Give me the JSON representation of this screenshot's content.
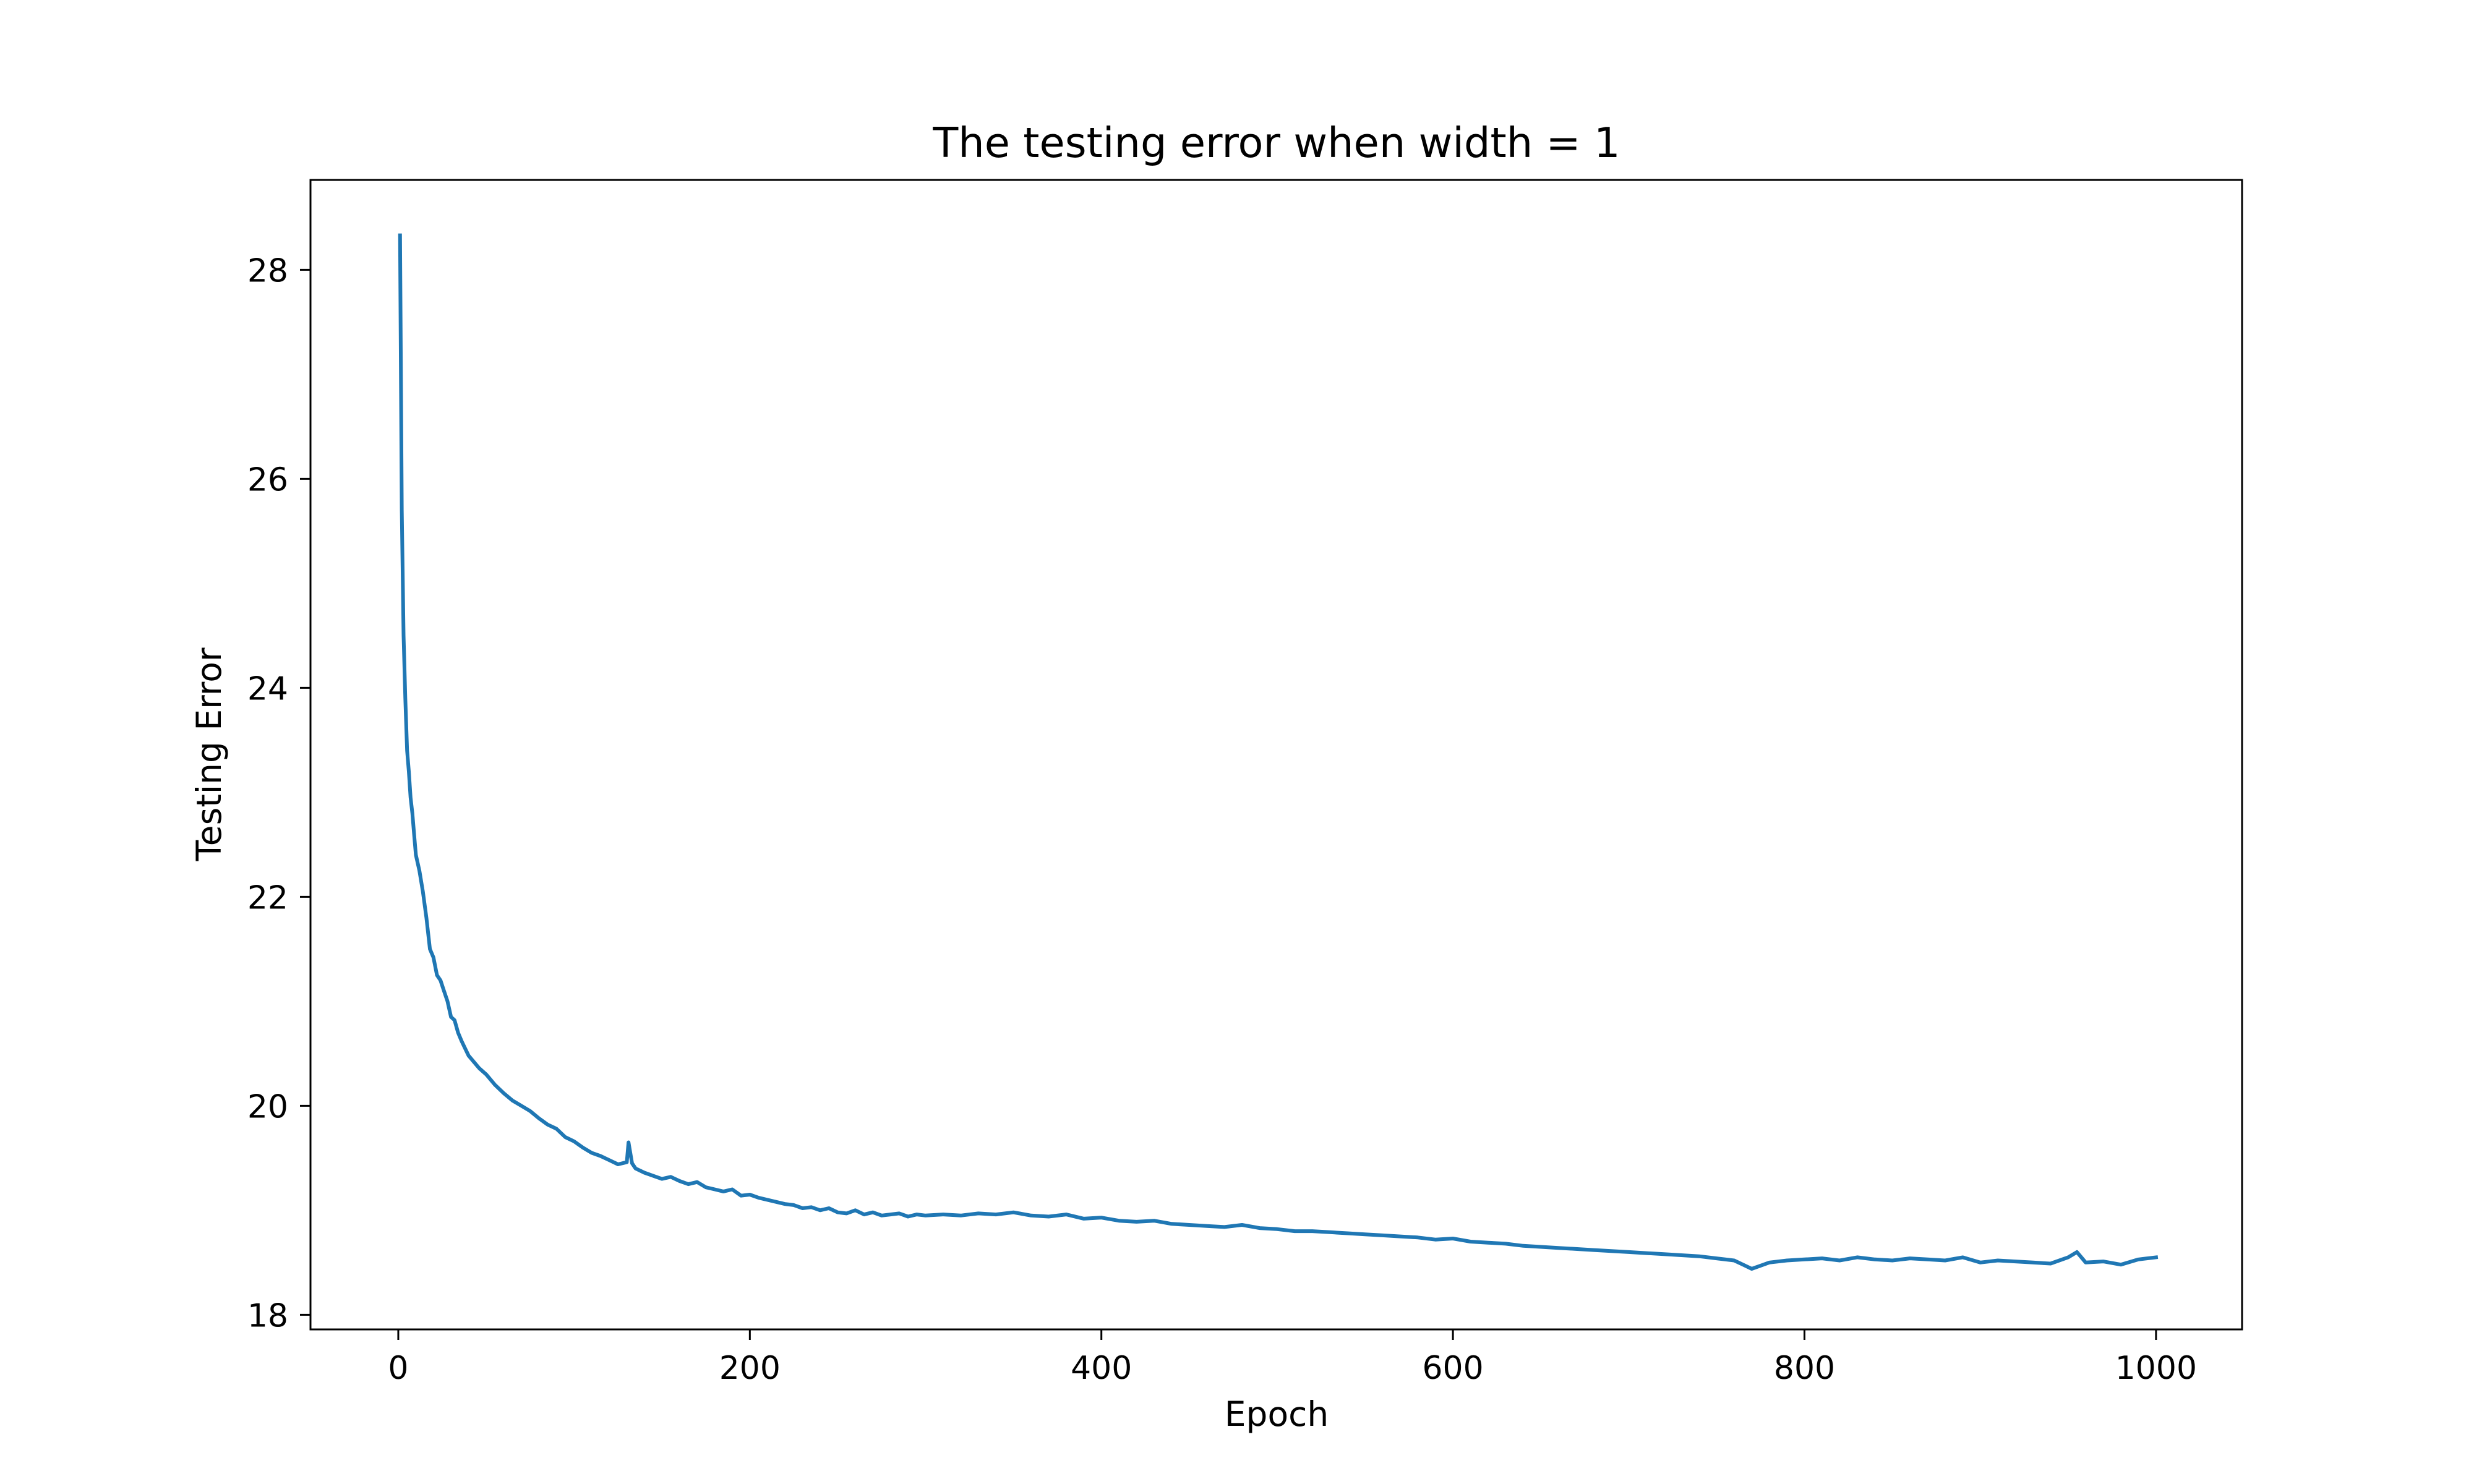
{
  "chart_data": {
    "type": "line",
    "title": "The testing error when width = 1",
    "xlabel": "Epoch",
    "ylabel": "Testing Error",
    "xlim": [
      -49.95,
      1048.95
    ],
    "ylim": [
      17.86,
      28.86
    ],
    "x_ticks": [
      0,
      200,
      400,
      600,
      800,
      1000
    ],
    "y_ticks": [
      18,
      20,
      22,
      24,
      26,
      28
    ],
    "x_tick_labels": [
      "0",
      "200",
      "400",
      "600",
      "800",
      "1000"
    ],
    "y_tick_labels": [
      "18",
      "20",
      "22",
      "24",
      "26",
      "28"
    ],
    "grid": false,
    "legend": "none",
    "series": [
      {
        "color": "#1f77b4",
        "x": [
          1,
          2,
          3,
          4,
          5,
          6,
          7,
          8,
          9,
          10,
          12,
          14,
          16,
          18,
          20,
          22,
          24,
          26,
          28,
          30,
          32,
          34,
          36,
          38,
          40,
          43,
          46,
          50,
          55,
          60,
          65,
          70,
          75,
          80,
          85,
          90,
          95,
          100,
          105,
          110,
          115,
          120,
          125,
          130,
          131,
          133,
          135,
          140,
          145,
          150,
          155,
          160,
          165,
          170,
          175,
          180,
          185,
          190,
          195,
          200,
          205,
          210,
          215,
          220,
          225,
          230,
          235,
          240,
          245,
          250,
          255,
          260,
          265,
          270,
          275,
          280,
          285,
          290,
          295,
          300,
          310,
          320,
          330,
          340,
          350,
          360,
          370,
          380,
          390,
          400,
          410,
          420,
          430,
          440,
          450,
          460,
          470,
          480,
          490,
          500,
          510,
          520,
          530,
          540,
          550,
          560,
          570,
          580,
          590,
          600,
          610,
          620,
          630,
          640,
          650,
          660,
          670,
          680,
          690,
          700,
          710,
          720,
          730,
          740,
          750,
          760,
          765,
          770,
          775,
          780,
          790,
          800,
          810,
          820,
          830,
          840,
          850,
          860,
          870,
          880,
          890,
          900,
          910,
          920,
          930,
          940,
          950,
          955,
          960,
          970,
          980,
          990,
          1000
        ],
        "values": [
          28.33,
          25.7,
          24.5,
          23.9,
          23.4,
          23.2,
          22.95,
          22.8,
          22.6,
          22.4,
          22.25,
          22.05,
          21.8,
          21.5,
          21.42,
          21.25,
          21.2,
          21.1,
          21.0,
          20.85,
          20.82,
          20.7,
          20.62,
          20.55,
          20.48,
          20.42,
          20.36,
          20.3,
          20.2,
          20.12,
          20.05,
          20.0,
          19.95,
          19.88,
          19.82,
          19.78,
          19.7,
          19.66,
          19.6,
          19.55,
          19.52,
          19.48,
          19.44,
          19.46,
          19.65,
          19.45,
          19.4,
          19.36,
          19.33,
          19.3,
          19.32,
          19.28,
          19.25,
          19.27,
          19.22,
          19.2,
          19.18,
          19.2,
          19.14,
          19.15,
          19.12,
          19.1,
          19.08,
          19.06,
          19.05,
          19.02,
          19.03,
          19.0,
          19.02,
          18.98,
          18.97,
          19.0,
          18.96,
          18.98,
          18.95,
          18.96,
          18.97,
          18.94,
          18.96,
          18.95,
          18.96,
          18.95,
          18.97,
          18.96,
          18.98,
          18.95,
          18.94,
          18.96,
          18.92,
          18.93,
          18.9,
          18.89,
          18.9,
          18.87,
          18.86,
          18.85,
          18.84,
          18.86,
          18.83,
          18.82,
          18.8,
          18.8,
          18.79,
          18.78,
          18.77,
          18.76,
          18.75,
          18.74,
          18.72,
          18.73,
          18.7,
          18.69,
          18.68,
          18.66,
          18.65,
          18.64,
          18.63,
          18.62,
          18.61,
          18.6,
          18.59,
          18.58,
          18.57,
          18.56,
          18.54,
          18.52,
          18.48,
          18.44,
          18.47,
          18.5,
          18.52,
          18.53,
          18.54,
          18.52,
          18.55,
          18.53,
          18.52,
          18.54,
          18.53,
          18.52,
          18.55,
          18.5,
          18.52,
          18.51,
          18.5,
          18.49,
          18.55,
          18.6,
          18.5,
          18.51,
          18.48,
          18.53,
          18.55
        ]
      }
    ]
  }
}
